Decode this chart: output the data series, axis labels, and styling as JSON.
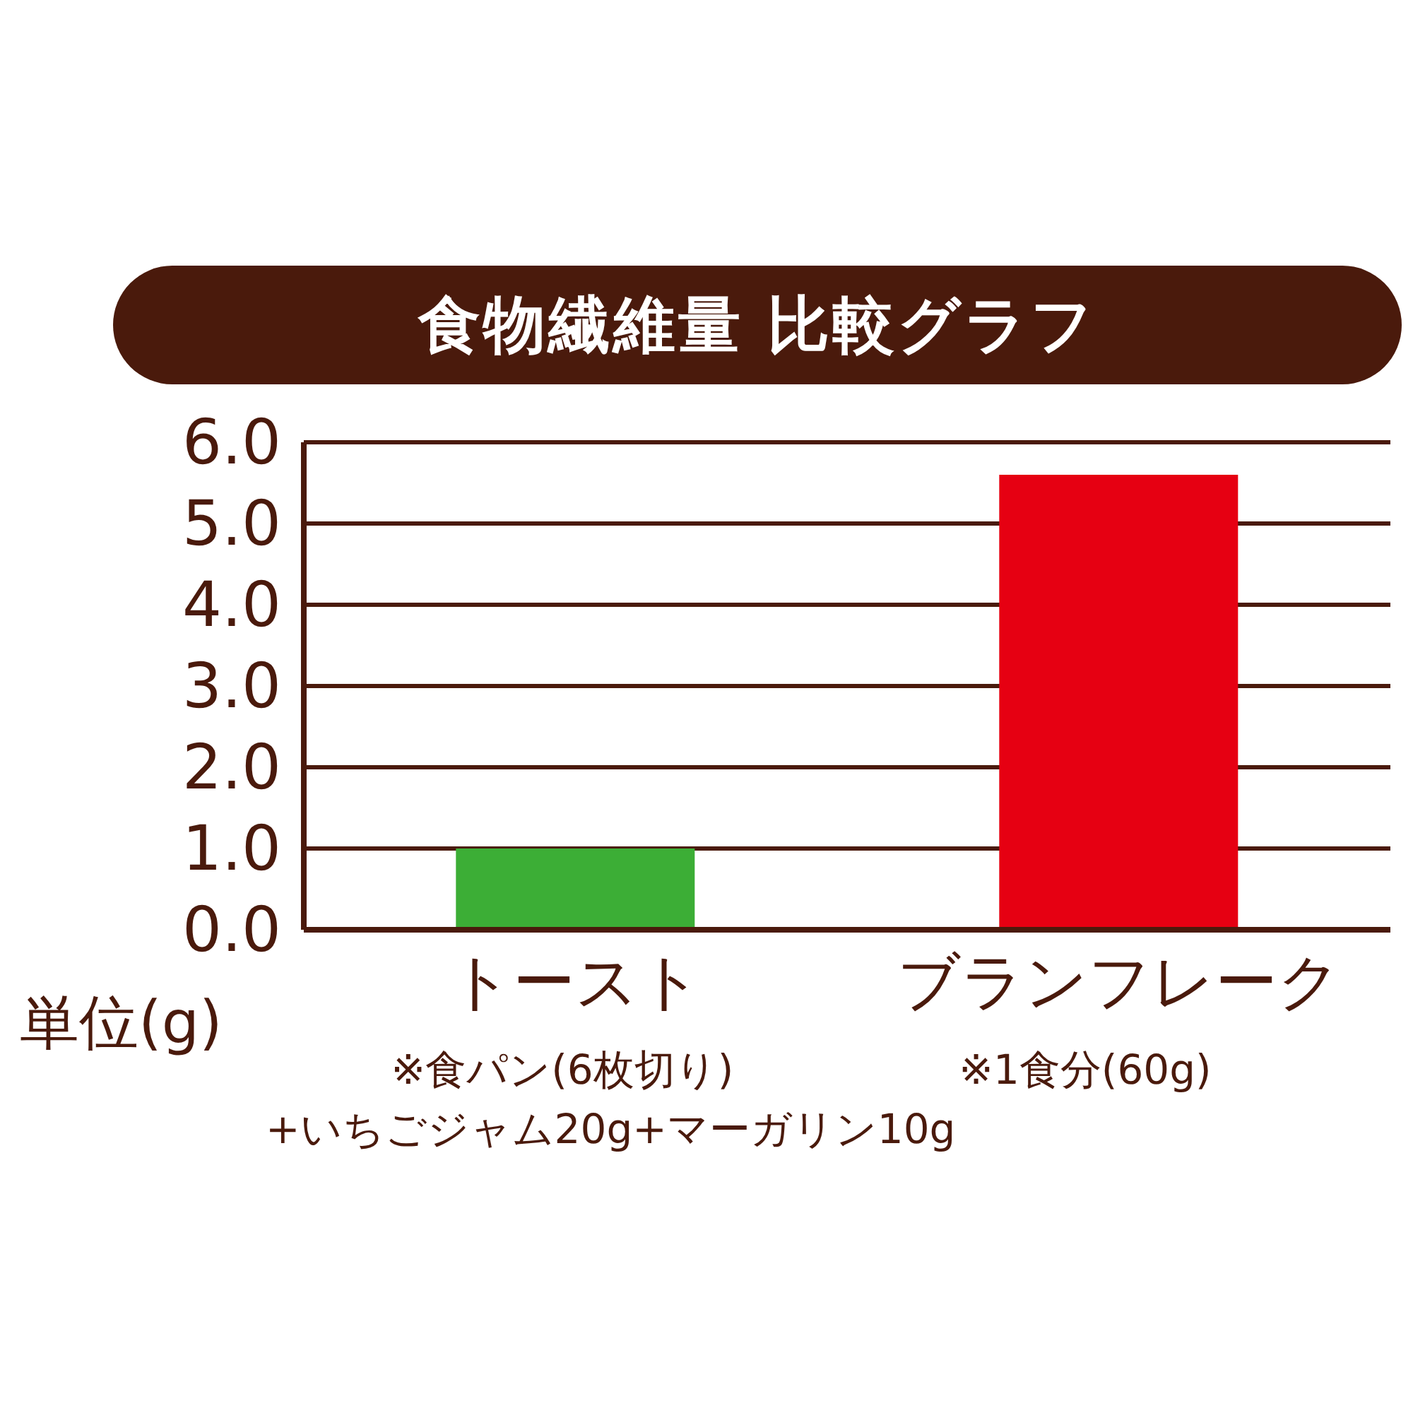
{
  "chart_data": {
    "type": "bar",
    "title": "食物繊維量 比較グラフ",
    "ylabel": "単位(g)",
    "categories": [
      "トースト",
      "ブランフレーク"
    ],
    "values": [
      1.0,
      5.6
    ],
    "colors": [
      "#3cae36",
      "#e60012"
    ],
    "ylim": [
      0,
      6
    ],
    "yticks": [
      {
        "value": 0,
        "label": "0.0"
      },
      {
        "value": 1,
        "label": "1.0"
      },
      {
        "value": 2,
        "label": "2.0"
      },
      {
        "value": 3,
        "label": "3.0"
      },
      {
        "value": 4,
        "label": "4.0"
      },
      {
        "value": 5,
        "label": "5.0"
      },
      {
        "value": 6,
        "label": "6.0"
      }
    ],
    "grid": "y",
    "annotations": [
      "※食パン(6枚切り)",
      "+いちごジャム20g+マーガリン10g",
      "※1食分(60g)"
    ]
  }
}
